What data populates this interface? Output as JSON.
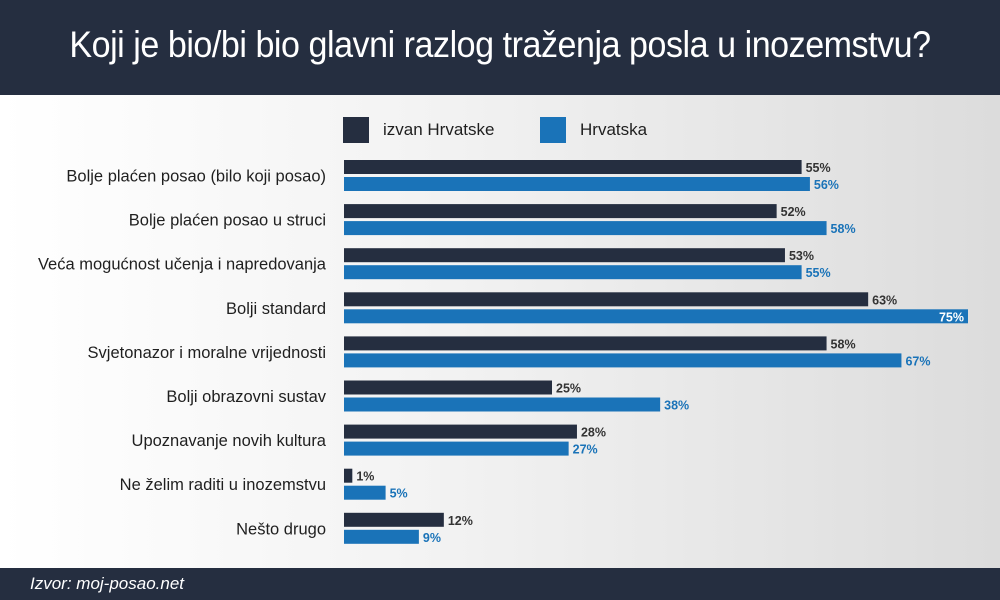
{
  "header": {
    "title": "Koji je bio/bi bio glavni razlog traženja posla u inozemstvu?"
  },
  "footer": {
    "source": "Izvor: moj-posao.net"
  },
  "colors": {
    "dark": "#252e40",
    "blue": "#1a73b8",
    "header_bg": "#252e40"
  },
  "chart_data": {
    "type": "bar",
    "orientation": "horizontal",
    "title": "Koji je bio/bi bio glavni razlog traženja posla u inozemstvu?",
    "categories": [
      "Bolje plaćen posao (bilo koji posao)",
      "Bolje plaćen posao u struci",
      "Veća mogućnost učenja i napredovanja",
      "Bolji standard",
      "Svjetonazor i moralne vrijednosti",
      "Bolji obrazovni sustav",
      "Upoznavanje novih kultura",
      "Ne želim raditi u inozemstvu",
      "Nešto drugo"
    ],
    "series": [
      {
        "name": "izvan Hrvatske",
        "color": "#252e40",
        "values": [
          55,
          52,
          53,
          63,
          58,
          25,
          28,
          1,
          12
        ],
        "labels": [
          "55%",
          "52%",
          "53%",
          "63%",
          "58%",
          "25%",
          "28%",
          "1%",
          "12%"
        ]
      },
      {
        "name": "Hrvatska",
        "color": "#1a73b8",
        "values": [
          56,
          58,
          55,
          75,
          67,
          38,
          27,
          5,
          9
        ],
        "labels": [
          "56%",
          "58%",
          "55%",
          "75%",
          "67%",
          "38%",
          "27%",
          "5%",
          "9%"
        ]
      }
    ],
    "xlim": [
      0,
      75
    ],
    "legend": "top",
    "grid": false
  }
}
